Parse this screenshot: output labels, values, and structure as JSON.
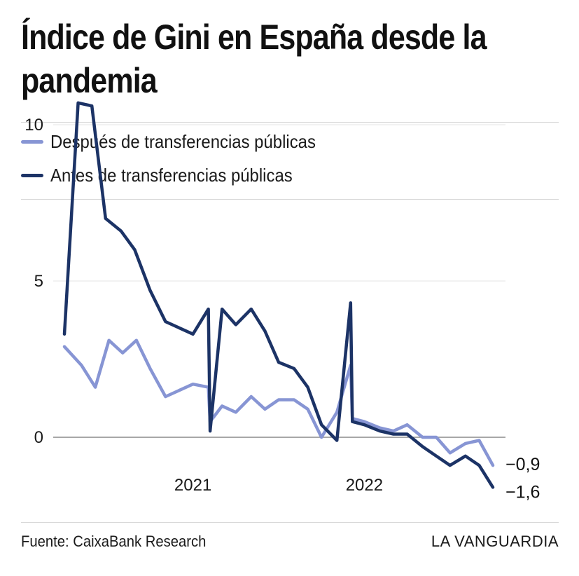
{
  "title": "Índice de Gini en España desde la pandemia",
  "legend": [
    {
      "label": "Después de transferencias públicas",
      "color": "#8795d4"
    },
    {
      "label": "Antes de transferencias públicas",
      "color": "#1c3366"
    }
  ],
  "footer": {
    "source": "Fuente: CaixaBank Research",
    "brand": "LA VANGUARDIA"
  },
  "chart_data": {
    "type": "line",
    "title": "Índice de Gini en España desde la pandemia",
    "xlabel": "",
    "ylabel": "",
    "ylim": [
      -2,
      11
    ],
    "yticks": [
      0,
      5,
      10
    ],
    "ytick_labels": [
      "0",
      "5",
      "10"
    ],
    "xticks": [
      2021,
      2022
    ],
    "xtick_labels": [
      "2021",
      "2022"
    ],
    "grid": true,
    "end_labels": [
      "−0,9",
      "−1,6"
    ],
    "series": [
      {
        "name": "Después de transferencias públicas",
        "color": "#8795d4",
        "points": [
          [
            2020.25,
            2.9
          ],
          [
            2020.35,
            2.3
          ],
          [
            2020.43,
            1.6
          ],
          [
            2020.51,
            3.1
          ],
          [
            2020.59,
            2.7
          ],
          [
            2020.67,
            3.1
          ],
          [
            2020.75,
            2.2
          ],
          [
            2020.84,
            1.3
          ],
          [
            2020.92,
            1.5
          ],
          [
            2021.0,
            1.7
          ],
          [
            2021.09,
            1.6
          ],
          [
            2021.1,
            0.5
          ],
          [
            2021.17,
            1.0
          ],
          [
            2021.25,
            0.8
          ],
          [
            2021.34,
            1.3
          ],
          [
            2021.42,
            0.9
          ],
          [
            2021.5,
            1.2
          ],
          [
            2021.59,
            1.2
          ],
          [
            2021.67,
            0.9
          ],
          [
            2021.75,
            0.0
          ],
          [
            2021.84,
            0.8
          ],
          [
            2021.92,
            2.3
          ],
          [
            2021.93,
            0.6
          ],
          [
            2022.0,
            0.5
          ],
          [
            2022.09,
            0.3
          ],
          [
            2022.17,
            0.2
          ],
          [
            2022.25,
            0.4
          ],
          [
            2022.34,
            0.0
          ],
          [
            2022.42,
            0.0
          ],
          [
            2022.5,
            -0.5
          ],
          [
            2022.59,
            -0.2
          ],
          [
            2022.67,
            -0.1
          ],
          [
            2022.75,
            -0.9
          ]
        ]
      },
      {
        "name": "Antes de transferencias públicas",
        "color": "#1c3366",
        "points": [
          [
            2020.25,
            3.3
          ],
          [
            2020.33,
            10.7
          ],
          [
            2020.41,
            10.6
          ],
          [
            2020.49,
            7.0
          ],
          [
            2020.58,
            6.6
          ],
          [
            2020.66,
            6.0
          ],
          [
            2020.75,
            4.7
          ],
          [
            2020.84,
            3.7
          ],
          [
            2020.92,
            3.5
          ],
          [
            2021.0,
            3.3
          ],
          [
            2021.09,
            4.1
          ],
          [
            2021.1,
            0.2
          ],
          [
            2021.17,
            4.1
          ],
          [
            2021.25,
            3.6
          ],
          [
            2021.34,
            4.1
          ],
          [
            2021.42,
            3.4
          ],
          [
            2021.5,
            2.4
          ],
          [
            2021.59,
            2.2
          ],
          [
            2021.67,
            1.6
          ],
          [
            2021.75,
            0.4
          ],
          [
            2021.84,
            -0.1
          ],
          [
            2021.92,
            4.3
          ],
          [
            2021.93,
            0.5
          ],
          [
            2022.0,
            0.4
          ],
          [
            2022.09,
            0.2
          ],
          [
            2022.17,
            0.1
          ],
          [
            2022.25,
            0.1
          ],
          [
            2022.34,
            -0.3
          ],
          [
            2022.42,
            -0.6
          ],
          [
            2022.5,
            -0.9
          ],
          [
            2022.59,
            -0.6
          ],
          [
            2022.67,
            -0.9
          ],
          [
            2022.75,
            -1.6
          ]
        ]
      }
    ]
  }
}
